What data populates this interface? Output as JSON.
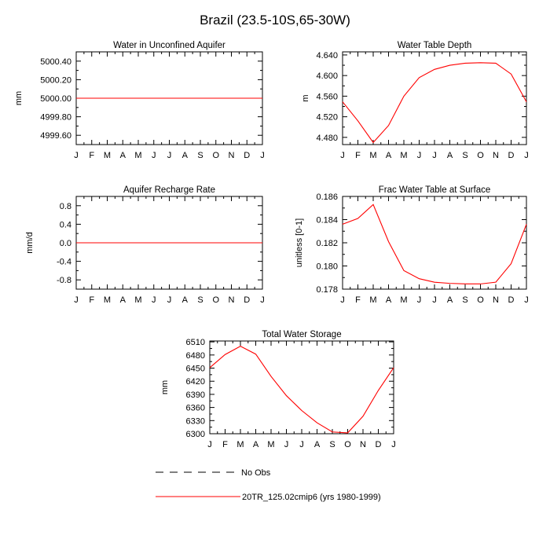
{
  "figure_title": "Brazil (23.5-10S,65-30W)",
  "legend": {
    "entries": [
      {
        "label": "No Obs",
        "color": "#000000",
        "dash": "dashed"
      },
      {
        "label": "20TR_125.02cmip6 (yrs 1980-1999)",
        "color": "#ff0000",
        "dash": "solid"
      }
    ]
  },
  "chart_data": [
    {
      "type": "line",
      "title": "Water in Unconfined Aquifer",
      "ylabel": "mm",
      "x": [
        "J",
        "F",
        "M",
        "A",
        "M",
        "J",
        "J",
        "A",
        "S",
        "O",
        "N",
        "D",
        "J"
      ],
      "ylim": [
        4999.5,
        5000.5
      ],
      "yticks": [
        5000.4,
        5000.2,
        5000.0,
        4999.8,
        4999.6
      ],
      "ytick_labels": [
        "5000.40",
        "5000.20",
        "5000.00",
        "4999.80",
        "4999.60"
      ],
      "series": [
        {
          "color": "#ff0000",
          "values": [
            5000,
            5000,
            5000,
            5000,
            5000,
            5000,
            5000,
            5000,
            5000,
            5000,
            5000,
            5000,
            5000
          ]
        }
      ]
    },
    {
      "type": "line",
      "title": "Water Table Depth",
      "ylabel": "m",
      "x": [
        "J",
        "F",
        "M",
        "A",
        "M",
        "J",
        "J",
        "A",
        "S",
        "O",
        "N",
        "D",
        "J"
      ],
      "ylim": [
        4.466,
        4.646
      ],
      "yticks": [
        4.64,
        4.6,
        4.56,
        4.52,
        4.48
      ],
      "ytick_labels": [
        "4.640",
        "4.600",
        "4.560",
        "4.520",
        "4.480"
      ],
      "series": [
        {
          "color": "#ff0000",
          "values": [
            4.549,
            4.512,
            4.47,
            4.503,
            4.56,
            4.596,
            4.612,
            4.62,
            4.624,
            4.625,
            4.624,
            4.603,
            4.549
          ]
        }
      ]
    },
    {
      "type": "line",
      "title": "Aquifer Recharge Rate",
      "ylabel": "mm/d",
      "x": [
        "J",
        "F",
        "M",
        "A",
        "M",
        "J",
        "J",
        "A",
        "S",
        "O",
        "N",
        "D",
        "J"
      ],
      "ylim": [
        -1.0,
        1.0
      ],
      "yticks": [
        0.8,
        0.4,
        0.0,
        -0.4,
        -0.8
      ],
      "ytick_labels": [
        "0.8",
        "0.4",
        "0.0",
        "-0.4",
        "-0.8"
      ],
      "series": [
        {
          "color": "#ff0000",
          "values": [
            0,
            0,
            0,
            0,
            0,
            0,
            0,
            0,
            0,
            0,
            0,
            0,
            0
          ]
        }
      ]
    },
    {
      "type": "line",
      "title": "Frac Water Table at Surface",
      "ylabel": "unitless [0-1]",
      "x": [
        "J",
        "F",
        "M",
        "A",
        "M",
        "J",
        "J",
        "A",
        "S",
        "O",
        "N",
        "D",
        "J"
      ],
      "ylim": [
        0.178,
        0.186
      ],
      "yticks": [
        0.186,
        0.184,
        0.182,
        0.18,
        0.178
      ],
      "ytick_labels": [
        "0.186",
        "0.184",
        "0.182",
        "0.180",
        "0.178"
      ],
      "series": [
        {
          "color": "#ff0000",
          "values": [
            0.1836,
            0.1841,
            0.1853,
            0.1821,
            0.1796,
            0.1789,
            0.1786,
            0.1785,
            0.17845,
            0.17845,
            0.1786,
            0.1802,
            0.1836
          ]
        }
      ]
    },
    {
      "type": "line",
      "title": "Total Water Storage",
      "ylabel": "mm",
      "x": [
        "J",
        "F",
        "M",
        "A",
        "M",
        "J",
        "J",
        "A",
        "S",
        "O",
        "N",
        "D",
        "J"
      ],
      "ylim": [
        6300,
        6512
      ],
      "yticks": [
        6510,
        6480,
        6450,
        6420,
        6390,
        6360,
        6330,
        6300
      ],
      "ytick_labels": [
        "6510",
        "6480",
        "6450",
        "6420",
        "6390",
        "6360",
        "6330",
        "6300"
      ],
      "series": [
        {
          "color": "#ff0000",
          "values": [
            6451,
            6481,
            6500,
            6482,
            6431,
            6387,
            6353,
            6325,
            6304,
            6302,
            6340,
            6399,
            6451
          ]
        }
      ]
    }
  ]
}
